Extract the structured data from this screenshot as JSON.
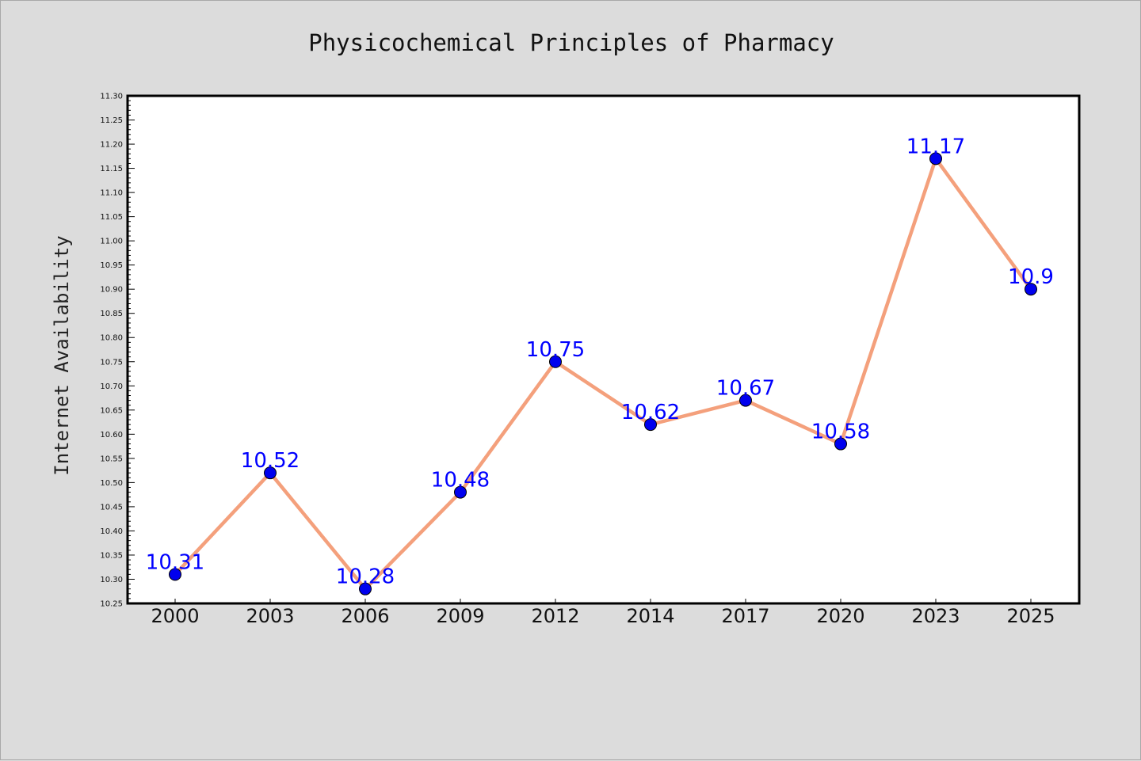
{
  "chart_data": {
    "type": "line",
    "title": "Physicochemical Principles of Pharmacy",
    "xlabel": "",
    "ylabel": "Internet Availability",
    "categories": [
      "2000",
      "2003",
      "2006",
      "2009",
      "2012",
      "2014",
      "2017",
      "2020",
      "2023",
      "2025"
    ],
    "series": [
      {
        "values": [
          10.31,
          10.52,
          10.28,
          10.48,
          10.75,
          10.62,
          10.67,
          10.58,
          11.17,
          10.9
        ],
        "data_labels": [
          "10.31",
          "10.52",
          "10.28",
          "10.48",
          "10.75",
          "10.62",
          "10.67",
          "10.58",
          "11.17",
          "10.9"
        ],
        "line_color": "#f4a07c",
        "marker_color": "#0000ee",
        "label_color": "#0000ff"
      }
    ],
    "ylim": [
      10.25,
      11.3
    ],
    "yticks": [
      "10.25",
      "10.30",
      "10.35",
      "10.40",
      "10.45",
      "10.50",
      "10.55",
      "10.60",
      "10.65",
      "10.70",
      "10.75",
      "10.80",
      "10.85",
      "10.90",
      "10.95",
      "11.00",
      "11.05",
      "11.10",
      "11.15",
      "11.20",
      "11.25",
      "11.30"
    ],
    "grid": false,
    "legend": "none",
    "colors": {
      "background": "#dcdcdc",
      "plot_background": "#ffffff",
      "axis": "#000000"
    }
  }
}
